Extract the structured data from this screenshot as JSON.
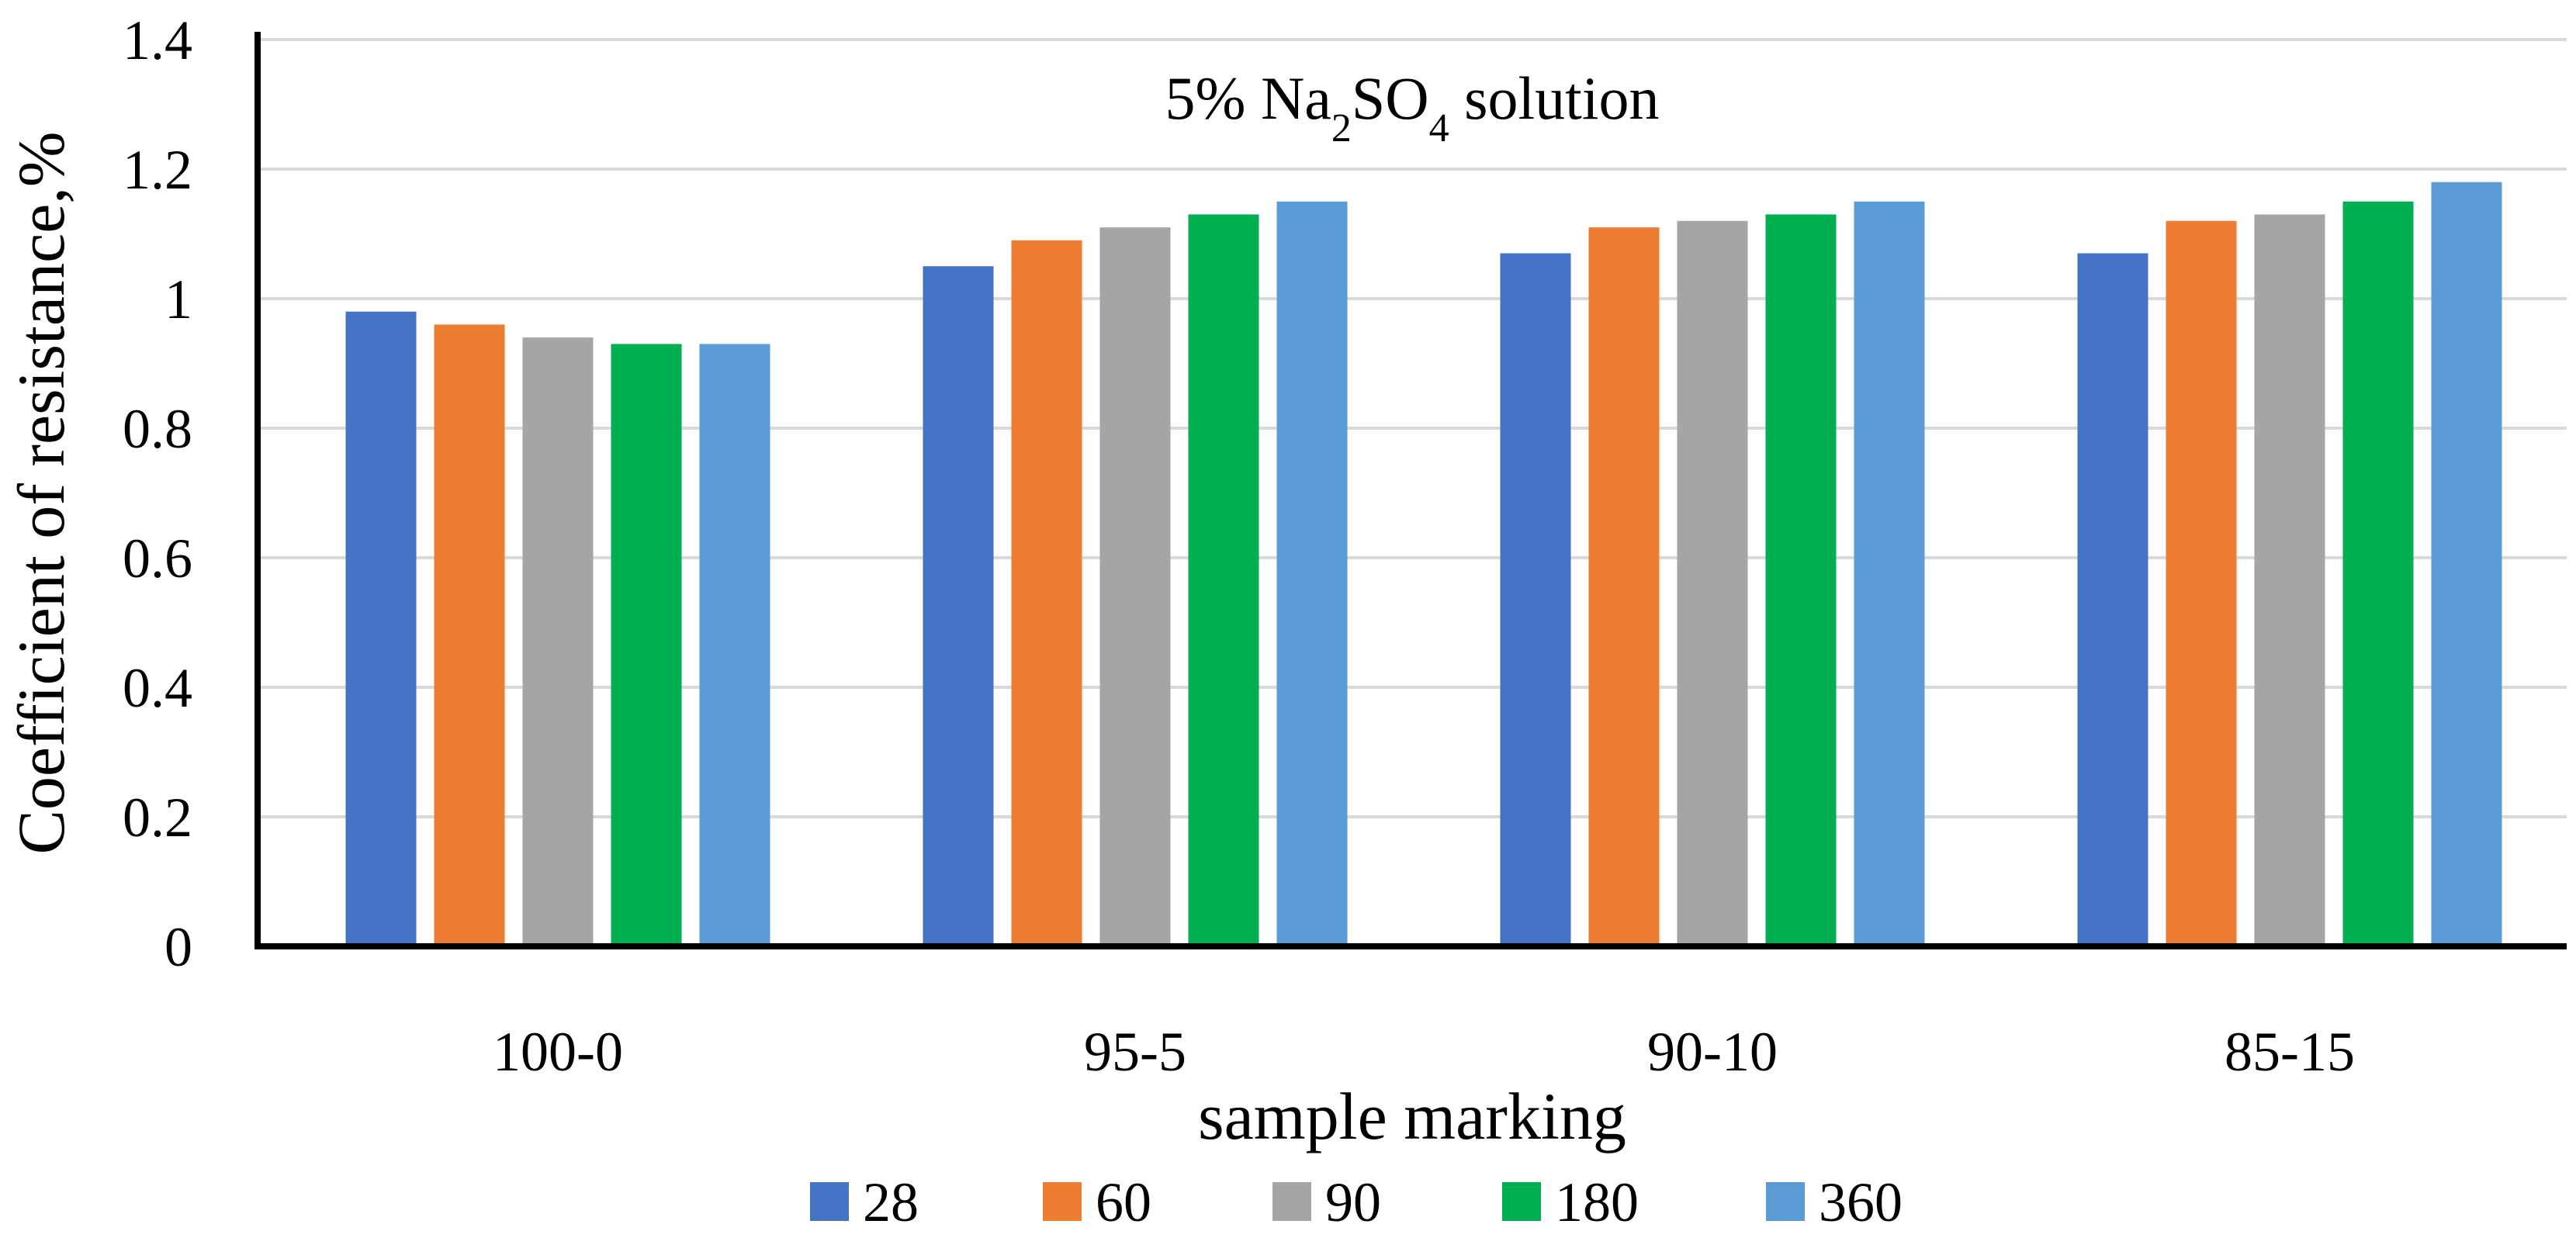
{
  "chart_data": {
    "type": "bar",
    "title_parts": [
      "5% Na",
      "2",
      "SO",
      "4",
      " solution"
    ],
    "xlabel": "sample marking",
    "ylabel": "Coefficient of resistance,%",
    "categories": [
      "100-0",
      "95-5",
      "90-10",
      "85-15"
    ],
    "series": [
      {
        "name": "28",
        "color": "#4472C4",
        "values": [
          0.98,
          1.05,
          1.07,
          1.07
        ]
      },
      {
        "name": "60",
        "color": "#ED7D31",
        "values": [
          0.96,
          1.09,
          1.11,
          1.12
        ]
      },
      {
        "name": "90",
        "color": "#A5A5A5",
        "values": [
          0.94,
          1.11,
          1.12,
          1.13
        ]
      },
      {
        "name": "180",
        "color": "#00B050",
        "values": [
          0.93,
          1.13,
          1.13,
          1.15
        ]
      },
      {
        "name": "360",
        "color": "#5B9BD5",
        "values": [
          0.93,
          1.15,
          1.15,
          1.18
        ]
      }
    ],
    "ylim": [
      0,
      1.4
    ],
    "yticks": [
      0,
      0.2,
      0.4,
      0.6,
      0.8,
      1,
      1.2,
      1.4
    ],
    "ytick_labels": [
      "0",
      "0.2",
      "0.4",
      "0.6",
      "0.8",
      "1",
      "1.2",
      "1.4"
    ],
    "grid": true,
    "legend_position": "bottom",
    "gridline_color": "#D9D9D9",
    "axis_color": "#000000"
  }
}
